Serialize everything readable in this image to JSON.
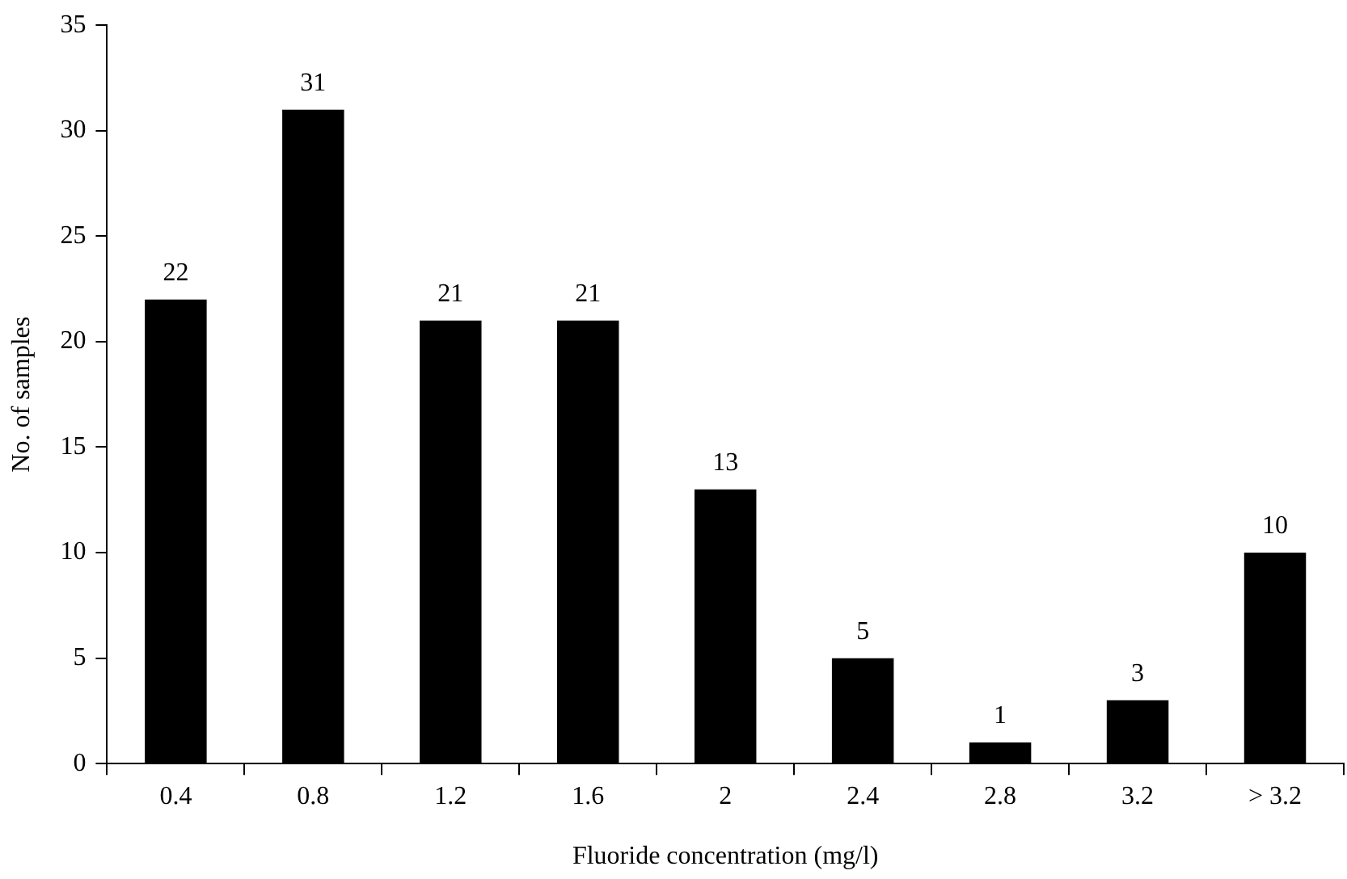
{
  "chart_data": {
    "type": "bar",
    "xlabel": "Fluoride concentration (mg/l)",
    "ylabel": "No. of samples",
    "categories": [
      "0.4",
      "0.8",
      "1.2",
      "1.6",
      "2",
      "2.4",
      "2.8",
      "3.2",
      "> 3.2"
    ],
    "values": [
      22,
      31,
      21,
      21,
      13,
      5,
      1,
      3,
      10
    ],
    "color": "#000000",
    "ylim": [
      0,
      35
    ],
    "yticks": [
      0,
      5,
      10,
      15,
      20,
      25,
      30,
      35
    ],
    "grid": false,
    "legend": false,
    "data_labels": true
  }
}
